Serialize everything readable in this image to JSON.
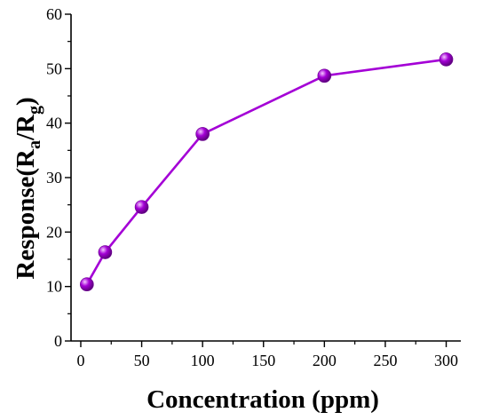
{
  "chart_data": {
    "type": "line",
    "title": "",
    "xlabel": "Concentration (ppm)",
    "ylabel": {
      "prefix": "Response(R",
      "sub1": "a",
      "mid": "/R",
      "sub2": "g",
      "suffix": ")"
    },
    "xlim": [
      -8,
      312
    ],
    "ylim": [
      0,
      60
    ],
    "xticks": [
      0,
      50,
      100,
      150,
      200,
      250,
      300
    ],
    "yticks": [
      0,
      10,
      20,
      30,
      40,
      50,
      60
    ],
    "grid": false,
    "legend": "none",
    "series": [
      {
        "x": [
          5,
          20,
          50,
          100,
          200,
          300
        ],
        "values": [
          10.4,
          16.3,
          24.6,
          38.0,
          48.7,
          51.7
        ]
      }
    ],
    "colors": {
      "line": "#A400D6",
      "marker": "#A400D6",
      "marker_highlight": "#F4C9FF",
      "axis": "#000000"
    }
  }
}
